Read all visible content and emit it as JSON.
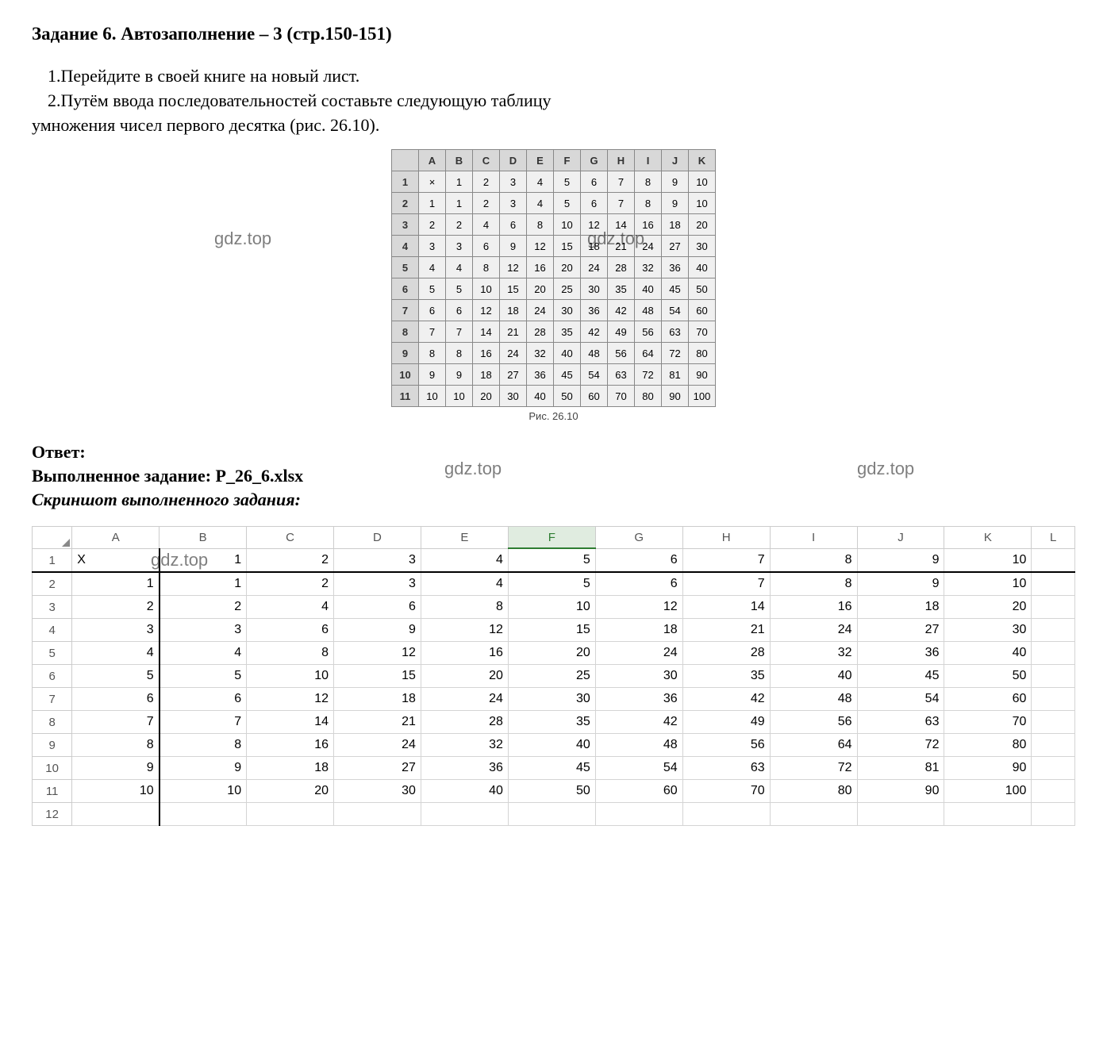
{
  "title": "Задание 6. Автозаполнение – 3 (стр.150-151)",
  "instr1": "1.Перейдите в своей книге на новый лист.",
  "instr2a": "2.Путём ввода последовательностей составьте следующую таблицу",
  "instr2b": "умножения чисел первого десятка (рис. 26.10).",
  "watermarks": {
    "w1": "gdz.top",
    "w2": "gdz.top",
    "w3": "gdz.top",
    "w4": "gdz.top",
    "w5": "gdz.top"
  },
  "ref_table": {
    "caption": "Рис. 26.10",
    "col_headers": [
      "A",
      "B",
      "C",
      "D",
      "E",
      "F",
      "G",
      "H",
      "I",
      "J",
      "K"
    ],
    "rows": [
      {
        "n": "1",
        "cells": [
          "×",
          "1",
          "2",
          "3",
          "4",
          "5",
          "6",
          "7",
          "8",
          "9",
          "10"
        ]
      },
      {
        "n": "2",
        "cells": [
          "1",
          "1",
          "2",
          "3",
          "4",
          "5",
          "6",
          "7",
          "8",
          "9",
          "10"
        ]
      },
      {
        "n": "3",
        "cells": [
          "2",
          "2",
          "4",
          "6",
          "8",
          "10",
          "12",
          "14",
          "16",
          "18",
          "20"
        ]
      },
      {
        "n": "4",
        "cells": [
          "3",
          "3",
          "6",
          "9",
          "12",
          "15",
          "18",
          "21",
          "24",
          "27",
          "30"
        ]
      },
      {
        "n": "5",
        "cells": [
          "4",
          "4",
          "8",
          "12",
          "16",
          "20",
          "24",
          "28",
          "32",
          "36",
          "40"
        ]
      },
      {
        "n": "6",
        "cells": [
          "5",
          "5",
          "10",
          "15",
          "20",
          "25",
          "30",
          "35",
          "40",
          "45",
          "50"
        ]
      },
      {
        "n": "7",
        "cells": [
          "6",
          "6",
          "12",
          "18",
          "24",
          "30",
          "36",
          "42",
          "48",
          "54",
          "60"
        ]
      },
      {
        "n": "8",
        "cells": [
          "7",
          "7",
          "14",
          "21",
          "28",
          "35",
          "42",
          "49",
          "56",
          "63",
          "70"
        ]
      },
      {
        "n": "9",
        "cells": [
          "8",
          "8",
          "16",
          "24",
          "32",
          "40",
          "48",
          "56",
          "64",
          "72",
          "80"
        ]
      },
      {
        "n": "10",
        "cells": [
          "9",
          "9",
          "18",
          "27",
          "36",
          "45",
          "54",
          "63",
          "72",
          "81",
          "90"
        ]
      },
      {
        "n": "11",
        "cells": [
          "10",
          "10",
          "20",
          "30",
          "40",
          "50",
          "60",
          "70",
          "80",
          "90",
          "100"
        ]
      }
    ]
  },
  "answer_label": "Ответ:",
  "filename_line": "Выполненное задание: Р_26_6.xlsx",
  "screenshot_label": "Скриншот выполненного задания:",
  "excel": {
    "col_headers": [
      "A",
      "B",
      "C",
      "D",
      "E",
      "F",
      "G",
      "H",
      "I",
      "J",
      "K",
      "L"
    ],
    "active_col": "F",
    "rows": [
      {
        "n": "1",
        "cells": [
          "X",
          "1",
          "2",
          "3",
          "4",
          "5",
          "6",
          "7",
          "8",
          "9",
          "10",
          ""
        ]
      },
      {
        "n": "2",
        "cells": [
          "1",
          "1",
          "2",
          "3",
          "4",
          "5",
          "6",
          "7",
          "8",
          "9",
          "10",
          ""
        ]
      },
      {
        "n": "3",
        "cells": [
          "2",
          "2",
          "4",
          "6",
          "8",
          "10",
          "12",
          "14",
          "16",
          "18",
          "20",
          ""
        ]
      },
      {
        "n": "4",
        "cells": [
          "3",
          "3",
          "6",
          "9",
          "12",
          "15",
          "18",
          "21",
          "24",
          "27",
          "30",
          ""
        ]
      },
      {
        "n": "5",
        "cells": [
          "4",
          "4",
          "8",
          "12",
          "16",
          "20",
          "24",
          "28",
          "32",
          "36",
          "40",
          ""
        ]
      },
      {
        "n": "6",
        "cells": [
          "5",
          "5",
          "10",
          "15",
          "20",
          "25",
          "30",
          "35",
          "40",
          "45",
          "50",
          ""
        ]
      },
      {
        "n": "7",
        "cells": [
          "6",
          "6",
          "12",
          "18",
          "24",
          "30",
          "36",
          "42",
          "48",
          "54",
          "60",
          ""
        ]
      },
      {
        "n": "8",
        "cells": [
          "7",
          "7",
          "14",
          "21",
          "28",
          "35",
          "42",
          "49",
          "56",
          "63",
          "70",
          ""
        ]
      },
      {
        "n": "9",
        "cells": [
          "8",
          "8",
          "16",
          "24",
          "32",
          "40",
          "48",
          "56",
          "64",
          "72",
          "80",
          ""
        ]
      },
      {
        "n": "10",
        "cells": [
          "9",
          "9",
          "18",
          "27",
          "36",
          "45",
          "54",
          "63",
          "72",
          "81",
          "90",
          ""
        ]
      },
      {
        "n": "11",
        "cells": [
          "10",
          "10",
          "20",
          "30",
          "40",
          "50",
          "60",
          "70",
          "80",
          "90",
          "100",
          ""
        ]
      },
      {
        "n": "12",
        "cells": [
          "",
          "",
          "",
          "",
          "",
          "",
          "",
          "",
          "",
          "",
          "",
          ""
        ]
      }
    ]
  }
}
